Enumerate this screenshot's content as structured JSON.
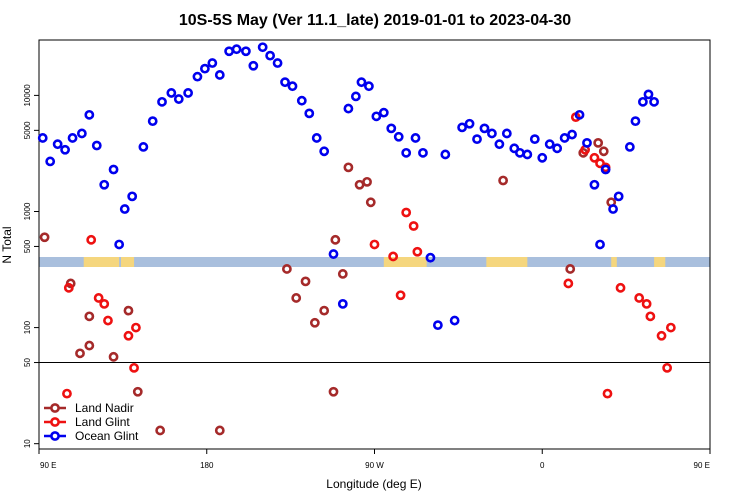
{
  "chart_data": {
    "type": "scatter",
    "title": "10S-5S May (Ver 11.1_late)   2019-01-01 to 2023-04-30",
    "xlabel": "Longitude (deg E)",
    "ylabel": "N Total",
    "xlim": [
      90,
      450
    ],
    "ylim": [
      9,
      30000
    ],
    "yscale": "log",
    "reference_line_y": 50,
    "x_ticks": [
      {
        "value": 90,
        "label": "90 E"
      },
      {
        "value": 180,
        "label": "180"
      },
      {
        "value": 270,
        "label": "90 W"
      },
      {
        "value": 360,
        "label": "0"
      },
      {
        "value": 450,
        "label": "90 E"
      }
    ],
    "y_ticks": [
      {
        "value": 10,
        "label": "10"
      },
      {
        "value": 50,
        "label": "50"
      },
      {
        "value": 100,
        "label": "100"
      },
      {
        "value": 500,
        "label": "500"
      },
      {
        "value": 1000,
        "label": "1000"
      },
      {
        "value": 5000,
        "label": "5000"
      },
      {
        "value": 10000,
        "label": "10000"
      }
    ],
    "legend": {
      "placement": "bottom-left"
    },
    "colors": {
      "ocean_band": "#a9bfdd",
      "land_band": "#f5d67e"
    },
    "series": [
      {
        "name": "Land Nadir",
        "color": "#a52a2a",
        "points": [
          [
            93,
            600
          ],
          [
            107,
            240
          ],
          [
            112,
            60
          ],
          [
            117,
            125
          ],
          [
            117,
            70
          ],
          [
            143,
            28
          ],
          [
            130,
            56
          ],
          [
            138,
            140
          ],
          [
            155,
            13
          ],
          [
            187,
            13
          ],
          [
            223,
            320
          ],
          [
            228,
            180
          ],
          [
            233,
            250
          ],
          [
            238,
            110
          ],
          [
            243,
            140
          ],
          [
            248,
            28
          ],
          [
            249,
            570
          ],
          [
            253,
            290
          ],
          [
            256,
            2400
          ],
          [
            262,
            1700
          ],
          [
            266,
            1800
          ],
          [
            268,
            1200
          ],
          [
            375,
            320
          ],
          [
            382,
            3200
          ],
          [
            390,
            3900
          ],
          [
            393,
            3300
          ],
          [
            397,
            1200
          ],
          [
            339,
            1850
          ]
        ]
      },
      {
        "name": "Land Glint",
        "color": "#ee1111",
        "points": [
          [
            105,
            27
          ],
          [
            106,
            220
          ],
          [
            118,
            570
          ],
          [
            122,
            180
          ],
          [
            125,
            160
          ],
          [
            127,
            115
          ],
          [
            138,
            85
          ],
          [
            141,
            45
          ],
          [
            142,
            100
          ],
          [
            270,
            520
          ],
          [
            280,
            410
          ],
          [
            284,
            190
          ],
          [
            287,
            980
          ],
          [
            291,
            750
          ],
          [
            293,
            450
          ],
          [
            374,
            240
          ],
          [
            378,
            6500
          ],
          [
            383,
            3400
          ],
          [
            388,
            2900
          ],
          [
            391,
            2600
          ],
          [
            394,
            2400
          ],
          [
            395,
            27
          ],
          [
            402,
            220
          ],
          [
            412,
            180
          ],
          [
            416,
            160
          ],
          [
            418,
            125
          ],
          [
            424,
            85
          ],
          [
            427,
            45
          ],
          [
            429,
            100
          ]
        ]
      },
      {
        "name": "Ocean Glint",
        "color": "#0000ee",
        "points": [
          [
            92,
            4300
          ],
          [
            96,
            2700
          ],
          [
            100,
            3800
          ],
          [
            104,
            3400
          ],
          [
            108,
            4300
          ],
          [
            113,
            4700
          ],
          [
            117,
            6800
          ],
          [
            121,
            3700
          ],
          [
            125,
            1700
          ],
          [
            130,
            2300
          ],
          [
            133,
            520
          ],
          [
            136,
            1050
          ],
          [
            140,
            1350
          ],
          [
            146,
            3600
          ],
          [
            151,
            6000
          ],
          [
            156,
            8800
          ],
          [
            161,
            10500
          ],
          [
            165,
            9300
          ],
          [
            170,
            10500
          ],
          [
            175,
            14500
          ],
          [
            179,
            17000
          ],
          [
            183,
            19000
          ],
          [
            187,
            15000
          ],
          [
            192,
            24000
          ],
          [
            196,
            25000
          ],
          [
            201,
            24000
          ],
          [
            205,
            18000
          ],
          [
            210,
            26000
          ],
          [
            214,
            22000
          ],
          [
            218,
            19000
          ],
          [
            222,
            13000
          ],
          [
            226,
            12000
          ],
          [
            231,
            9000
          ],
          [
            235,
            7000
          ],
          [
            239,
            4300
          ],
          [
            243,
            3300
          ],
          [
            248,
            430
          ],
          [
            253,
            160
          ],
          [
            256,
            7700
          ],
          [
            260,
            9800
          ],
          [
            263,
            13000
          ],
          [
            267,
            12000
          ],
          [
            271,
            6600
          ],
          [
            275,
            7100
          ],
          [
            279,
            5200
          ],
          [
            283,
            4400
          ],
          [
            287,
            3200
          ],
          [
            292,
            4300
          ],
          [
            296,
            3200
          ],
          [
            300,
            400
          ],
          [
            304,
            105
          ],
          [
            308,
            3100
          ],
          [
            313,
            115
          ],
          [
            317,
            5300
          ],
          [
            321,
            5700
          ],
          [
            325,
            4200
          ],
          [
            329,
            5200
          ],
          [
            333,
            4700
          ],
          [
            337,
            3800
          ],
          [
            341,
            4700
          ],
          [
            345,
            3500
          ],
          [
            348,
            3200
          ],
          [
            352,
            3100
          ],
          [
            356,
            4200
          ],
          [
            360,
            2900
          ],
          [
            364,
            3800
          ],
          [
            368,
            3500
          ],
          [
            372,
            4300
          ],
          [
            376,
            4600
          ],
          [
            380,
            6800
          ],
          [
            384,
            3900
          ],
          [
            388,
            1700
          ],
          [
            391,
            520
          ],
          [
            394,
            2300
          ],
          [
            398,
            1050
          ],
          [
            401,
            1350
          ],
          [
            407,
            3600
          ],
          [
            410,
            6000
          ],
          [
            414,
            8800
          ],
          [
            417,
            10200
          ],
          [
            420,
            8800
          ]
        ]
      }
    ],
    "land_spans": [
      [
        114,
        133
      ],
      [
        134,
        141
      ],
      [
        275,
        298
      ],
      [
        330,
        352
      ],
      [
        397,
        400
      ],
      [
        420,
        426
      ]
    ]
  }
}
